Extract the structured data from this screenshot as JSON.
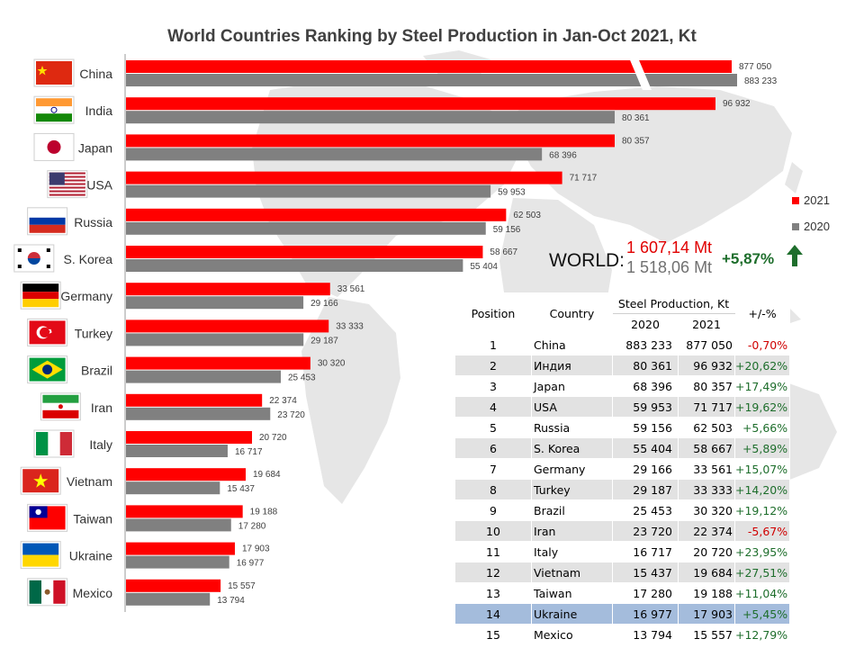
{
  "chart_data": {
    "type": "bar",
    "title": "World Countries Ranking by Steel Production in Jan-Oct 2021, Kt",
    "categories": [
      "China",
      "India",
      "Japan",
      "USA",
      "Russia",
      "S. Korea",
      "Germany",
      "Turkey",
      "Brazil",
      "Iran",
      "Italy",
      "Vietnam",
      "Taiwan",
      "Ukraine",
      "Mexico"
    ],
    "series": [
      {
        "name": "2021",
        "color": "#ff0000",
        "values": [
          877050,
          96932,
          80357,
          71717,
          62503,
          58667,
          33561,
          33333,
          30320,
          22374,
          20720,
          19684,
          19188,
          17903,
          15557
        ],
        "labels": [
          "877 050",
          "96 932",
          "80 357",
          "71 717",
          "62 503",
          "58 667",
          "33 561",
          "33 333",
          "30 320",
          "22 374",
          "20 720",
          "19 684",
          "19 188",
          "17 903",
          "15 557"
        ]
      },
      {
        "name": "2020",
        "color": "#808080",
        "values": [
          883233,
          80361,
          68396,
          59953,
          59156,
          55404,
          29166,
          29187,
          25453,
          23720,
          16717,
          15437,
          17280,
          16977,
          13794
        ],
        "labels": [
          "883 233",
          "80 361",
          "68 396",
          "59 953",
          "59 156",
          "55 404",
          "29 166",
          "29 187",
          "25 453",
          "23 720",
          "16 717",
          "15 437",
          "17 280",
          "16 977",
          "13 794"
        ]
      }
    ],
    "axis_break": "China bars broken (axis break)",
    "legend_position": "right"
  },
  "world": {
    "label": "WORLD:",
    "value_2021": "1 607,14 Mt",
    "value_2020": "1 518,06 Mt",
    "change": "+5,87%",
    "color_2021": "#e00000",
    "color_2020": "#707070",
    "change_color": "#1e6e2c"
  },
  "table": {
    "headers": {
      "position": "Position",
      "country": "Country",
      "production": "Steel Production, Kt",
      "y2020": "2020",
      "y2021": "2021",
      "change": "+/-%"
    },
    "highlight_color": "#a4bcdc",
    "rows": [
      {
        "pos": "1",
        "country": "China",
        "v2020": "883 233",
        "v2021": "877 050",
        "chg": "-0,70%"
      },
      {
        "pos": "2",
        "country": "Индия",
        "v2020": "80 361",
        "v2021": "96 932",
        "chg": "+20,62%"
      },
      {
        "pos": "3",
        "country": "Japan",
        "v2020": "68 396",
        "v2021": "80 357",
        "chg": "+17,49%"
      },
      {
        "pos": "4",
        "country": "USA",
        "v2020": "59 953",
        "v2021": "71 717",
        "chg": "+19,62%"
      },
      {
        "pos": "5",
        "country": "Russia",
        "v2020": "59 156",
        "v2021": "62 503",
        "chg": "+5,66%"
      },
      {
        "pos": "6",
        "country": "S. Korea",
        "v2020": "55 404",
        "v2021": "58 667",
        "chg": "+5,89%"
      },
      {
        "pos": "7",
        "country": "Germany",
        "v2020": "29 166",
        "v2021": "33 561",
        "chg": "+15,07%"
      },
      {
        "pos": "8",
        "country": "Turkey",
        "v2020": "29 187",
        "v2021": "33 333",
        "chg": "+14,20%"
      },
      {
        "pos": "9",
        "country": "Brazil",
        "v2020": "25 453",
        "v2021": "30 320",
        "chg": "+19,12%"
      },
      {
        "pos": "10",
        "country": "Iran",
        "v2020": "23 720",
        "v2021": "22 374",
        "chg": "-5,67%"
      },
      {
        "pos": "11",
        "country": "Italy",
        "v2020": "16 717",
        "v2021": "20 720",
        "chg": "+23,95%"
      },
      {
        "pos": "12",
        "country": "Vietnam",
        "v2020": "15 437",
        "v2021": "19 684",
        "chg": "+27,51%"
      },
      {
        "pos": "13",
        "country": "Taiwan",
        "v2020": "17 280",
        "v2021": "19 188",
        "chg": "+11,04%"
      },
      {
        "pos": "14",
        "country": "Ukraine",
        "v2020": "16 977",
        "v2021": "17 903",
        "chg": "+5,45%"
      },
      {
        "pos": "15",
        "country": "Mexico",
        "v2020": "13 794",
        "v2021": "15 557",
        "chg": "+12,79%"
      }
    ]
  },
  "icons": {
    "flags": [
      "china-flag-icon",
      "india-flag-icon",
      "japan-flag-icon",
      "usa-flag-icon",
      "russia-flag-icon",
      "south-korea-flag-icon",
      "germany-flag-icon",
      "turkey-flag-icon",
      "brazil-flag-icon",
      "iran-flag-icon",
      "italy-flag-icon",
      "vietnam-flag-icon",
      "taiwan-flag-icon",
      "ukraine-flag-icon",
      "mexico-flag-icon"
    ],
    "trend": "up-arrow-icon",
    "background": "world-map-icon"
  }
}
